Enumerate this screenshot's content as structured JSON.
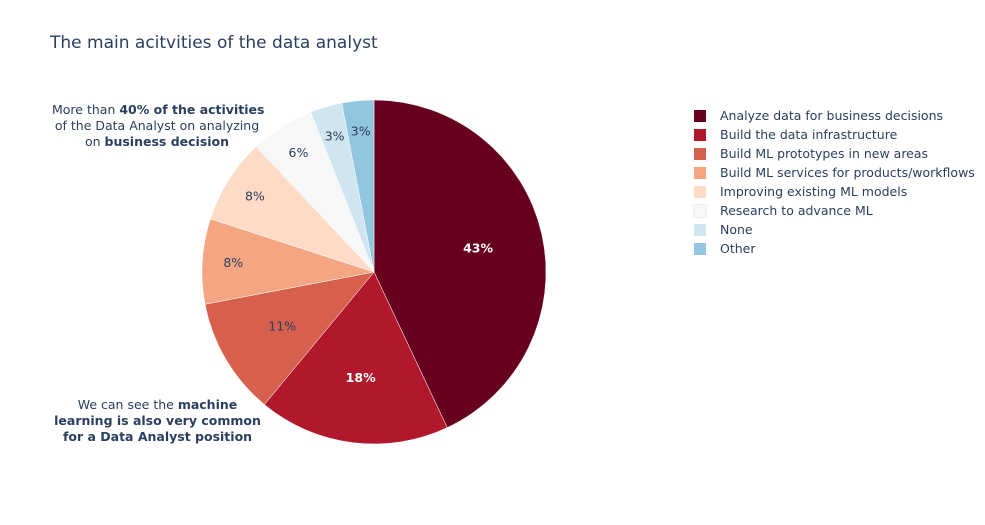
{
  "title": "The main acitvities of the data analyst",
  "annotations": [
    {
      "parts": [
        {
          "text": "More than ",
          "bold": false
        },
        {
          "text": "40% of the activities",
          "bold": true
        },
        {
          "text": "\nof the Data Analyst on analyzing\non ",
          "bold": false
        },
        {
          "text": "business decision",
          "bold": true
        }
      ]
    },
    {
      "parts": [
        {
          "text": "We can see the ",
          "bold": false
        },
        {
          "text": "machine\nlearning is also very common\nfor a Data Analyst position",
          "bold": true
        }
      ]
    }
  ],
  "chart_data": {
    "type": "pie",
    "title": "The main acitvities of the data analyst",
    "legend_position": "right",
    "slices": [
      {
        "label": "Analyze data for business decisions",
        "value": 43,
        "text": "43%",
        "color": "#67001f",
        "text_color": "#ffffff",
        "bold": true
      },
      {
        "label": "Build the data infrastructure",
        "value": 18,
        "text": "18%",
        "color": "#b2182b",
        "text_color": "#ffffff",
        "bold": true
      },
      {
        "label": "Build ML prototypes in new areas",
        "value": 11,
        "text": "11%",
        "color": "#d6604d",
        "text_color": "#2a3f5f",
        "bold": false
      },
      {
        "label": "Build ML services for products/workflows",
        "value": 8,
        "text": "8%",
        "color": "#f4a582",
        "text_color": "#2a3f5f",
        "bold": false
      },
      {
        "label": "Improving existing ML models",
        "value": 8,
        "text": "8%",
        "color": "#fddbc7",
        "text_color": "#2a3f5f",
        "bold": false
      },
      {
        "label": "Research to advance ML",
        "value": 6,
        "text": "6%",
        "color": "#f7f7f7",
        "text_color": "#2a3f5f",
        "bold": false
      },
      {
        "label": "None",
        "value": 3,
        "text": "3%",
        "color": "#d1e5f0",
        "text_color": "#2a3f5f",
        "bold": false
      },
      {
        "label": "Other",
        "value": 3,
        "text": "3%",
        "color": "#92c5de",
        "text_color": "#2a3f5f",
        "bold": false
      }
    ]
  }
}
